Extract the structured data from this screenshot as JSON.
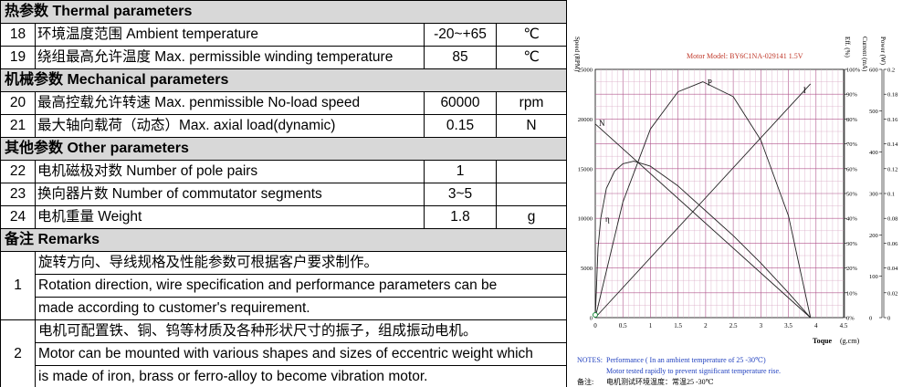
{
  "table": {
    "sections": {
      "thermal": "热参数 Thermal parameters",
      "mechanical": "机械参数 Mechanical parameters",
      "other": "其他参数 Other parameters",
      "remarks": "备注 Remarks"
    },
    "rows": [
      {
        "no": "18",
        "label": "环境温度范围 Ambient temperature",
        "value": "-20~+65",
        "unit": "℃"
      },
      {
        "no": "19",
        "label": "绕组最高允许温度 Max. permissible winding temperature",
        "value": "85",
        "unit": "℃"
      },
      {
        "no": "20",
        "label": "最高控载允许转速 Max. penmissible No-load speed",
        "value": "60000",
        "unit": "rpm"
      },
      {
        "no": "21",
        "label": "最大轴向载荷（动态）Max. axial load(dynamic)",
        "value": "0.15",
        "unit": "N"
      },
      {
        "no": "22",
        "label": "电机磁极对数 Number of pole pairs",
        "value": "1",
        "unit": ""
      },
      {
        "no": "23",
        "label": "换向器片数 Number of commutator segments",
        "value": "3~5",
        "unit": ""
      },
      {
        "no": "24",
        "label": "电机重量 Weight",
        "value": "1.8",
        "unit": "g"
      }
    ],
    "remarks": [
      {
        "no": "1",
        "lines": [
          "旋转方向、导线规格及性能参数可根据客户要求制作。",
          "Rotation direction, wire specification and performance parameters can be",
          "made according to customer's requirement."
        ]
      },
      {
        "no": "2",
        "lines": [
          "电机可配置铁、铜、钨等材质及各种形状尺寸的振子，组成振动电机。",
          "Motor can be mounted with various shapes and sizes of eccentric weight which",
          "is made of iron, brass or ferro-alloy to become vibration motor."
        ]
      }
    ]
  },
  "chart_data": {
    "type": "line",
    "title": "Motor Model: BY6C1NA-029141  1.5V",
    "xlabel_en": "Toque",
    "xlabel_unit": "(g.cm)",
    "x_ticks": [
      "0",
      "0.5",
      "1",
      "1.5",
      "2",
      "2.5",
      "3",
      "3.5",
      "4",
      "4.5"
    ],
    "xlim": [
      0,
      4.5
    ],
    "axes": {
      "speed": {
        "label": "Speed (RPM)",
        "ticks": [
          "0",
          "5000",
          "10000",
          "15000",
          "20000",
          "25000"
        ],
        "range": [
          0,
          25000
        ]
      },
      "eff": {
        "label": "Eff. (%)",
        "ticks": [
          "0%",
          "10%",
          "20%",
          "30%",
          "40%",
          "50%",
          "60%",
          "70%",
          "80%",
          "90%",
          "100%"
        ],
        "range": [
          0,
          100
        ]
      },
      "current": {
        "label": "Current (mA)",
        "ticks": [
          "0",
          "100",
          "200",
          "300",
          "400",
          "500",
          "600"
        ],
        "range": [
          0,
          600
        ]
      },
      "power": {
        "label": "Power (W)",
        "ticks": [
          "0",
          "0.02",
          "0.04",
          "0.06",
          "0.08",
          "0.1",
          "0.12",
          "0.14",
          "0.16",
          "0.18",
          "0.2"
        ],
        "range": [
          0,
          0.2
        ]
      }
    },
    "series": [
      {
        "name": "N",
        "axis": "speed",
        "x": [
          0,
          3.9
        ],
        "y": [
          19500,
          0
        ]
      },
      {
        "name": "I",
        "axis": "current",
        "x": [
          0,
          3.9
        ],
        "y": [
          0,
          565
        ]
      },
      {
        "name": "P",
        "axis": "power",
        "x": [
          0,
          0.5,
          1,
          1.5,
          1.95,
          2.5,
          3,
          3.5,
          3.9
        ],
        "y": [
          0,
          0.093,
          0.152,
          0.182,
          0.19,
          0.178,
          0.143,
          0.082,
          0
        ]
      },
      {
        "name": "η",
        "axis": "eff",
        "x": [
          0,
          0.05,
          0.1,
          0.2,
          0.35,
          0.5,
          0.7,
          1,
          1.5,
          2,
          2.5,
          3,
          3.5,
          3.9
        ],
        "y": [
          0,
          28,
          40,
          52,
          59,
          62,
          63,
          61,
          53,
          43,
          33,
          22,
          10,
          0
        ]
      }
    ],
    "grid": true,
    "notes": {
      "label": "NOTES:",
      "line1": "Performance ( In an ambient temperature of 25 -30℃)",
      "line2": "Motor tested rapidly to prevent significant temperature rise.",
      "cn_label": "备注:",
      "cn_text": "电机测试环境温度：常温25 -30℃"
    }
  }
}
